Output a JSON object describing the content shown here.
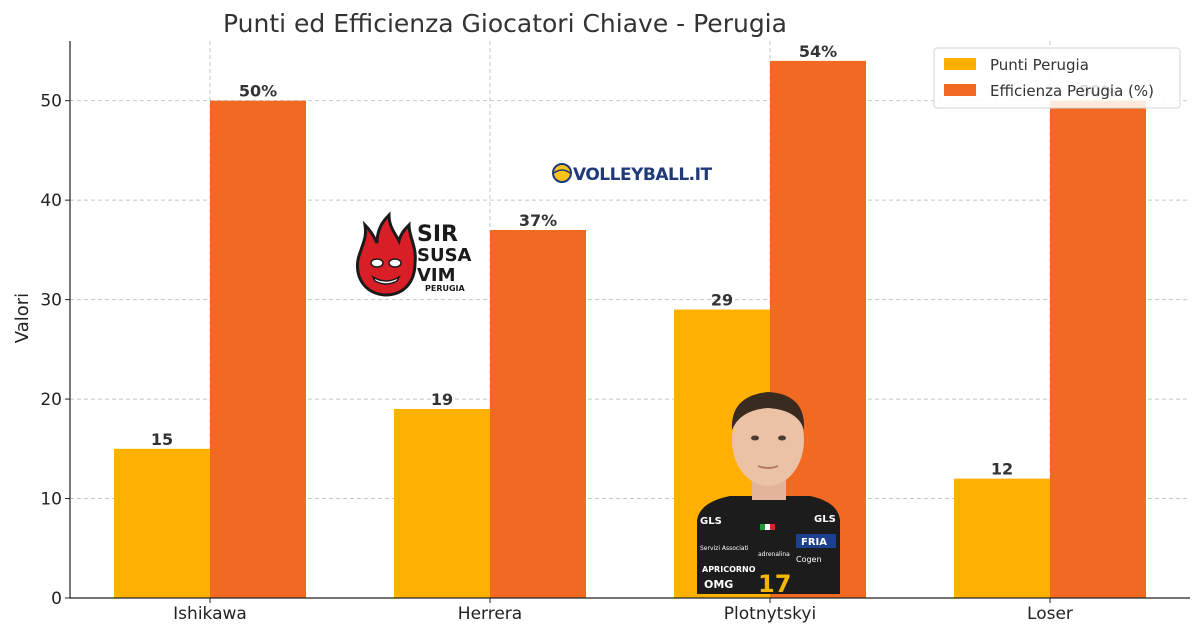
{
  "chart_data": {
    "type": "bar",
    "title": "Punti ed Efficienza Giocatori Chiave - Perugia",
    "xlabel": "",
    "ylabel": "Valori",
    "categories": [
      "Ishikawa",
      "Herrera",
      "Plotnytskyi",
      "Loser"
    ],
    "series": [
      {
        "name": "Punti Perugia",
        "values": [
          15,
          19,
          29,
          12
        ],
        "labels": [
          "15",
          "19",
          "29",
          "12"
        ],
        "color": "#FFB000"
      },
      {
        "name": "Efficienza Perugia (%)",
        "values": [
          50,
          37,
          54,
          50
        ],
        "labels": [
          "50%",
          "37%",
          "54%",
          "50%"
        ],
        "color": "#F26A22"
      }
    ],
    "ylim": [
      0,
      56
    ],
    "yticks": [
      0,
      10,
      20,
      30,
      40,
      50
    ],
    "grid": true,
    "legend": "top-right"
  },
  "overlays": {
    "volleyball_logo_text": "VOLLEYBALL.IT",
    "club_logo_lines": [
      "SIR",
      "SUSA",
      "VIM",
      "PERUGIA"
    ],
    "player_photo": {
      "jersey_number": "17",
      "sponsor_texts": [
        "GLS",
        "Servizi Associati",
        "adrenalina",
        "FRIA",
        "APRICORNO",
        "Cogen",
        "OMG"
      ]
    }
  }
}
